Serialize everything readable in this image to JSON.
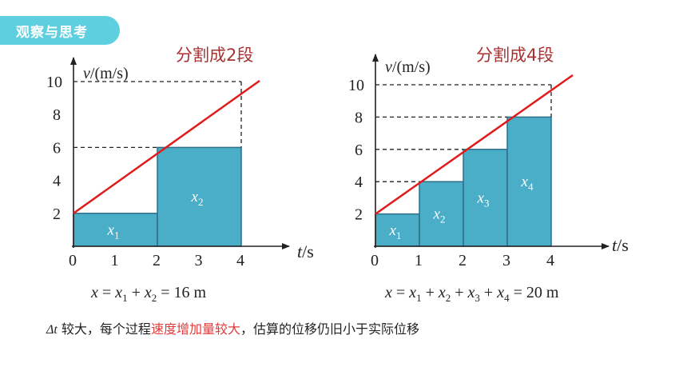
{
  "tag": {
    "label": "观察与思考"
  },
  "left_chart": {
    "title": "分割成2段",
    "y_label_var": "v",
    "y_label_unit": "/(m/s)",
    "x_label_var": "t",
    "x_label_unit": "/s",
    "x_ticks": [
      "0",
      "1",
      "2",
      "3",
      "4"
    ],
    "y_ticks": [
      "2",
      "4",
      "6",
      "8",
      "10"
    ],
    "bars": [
      {
        "x0": 0,
        "x1": 2,
        "height": 2,
        "label_var": "x",
        "label_sub": "1"
      },
      {
        "x0": 2,
        "x1": 4,
        "height": 6,
        "label_var": "x",
        "label_sub": "2"
      }
    ],
    "formula": {
      "lhs": "x",
      "terms": [
        [
          "x",
          "1"
        ],
        [
          "x",
          "2"
        ]
      ],
      "result": "= 16 m"
    }
  },
  "right_chart": {
    "title": "分割成4段",
    "y_label_var": "v",
    "y_label_unit": "/(m/s)",
    "x_label_var": "t",
    "x_label_unit": "/s",
    "x_ticks": [
      "0",
      "1",
      "2",
      "3",
      "4"
    ],
    "y_ticks": [
      "2",
      "4",
      "6",
      "8",
      "10"
    ],
    "bars": [
      {
        "x0": 0,
        "x1": 1,
        "height": 2,
        "label_var": "x",
        "label_sub": "1"
      },
      {
        "x0": 1,
        "x1": 2,
        "height": 4,
        "label_var": "x",
        "label_sub": "2"
      },
      {
        "x0": 2,
        "x1": 3,
        "height": 6,
        "label_var": "x",
        "label_sub": "3"
      },
      {
        "x0": 3,
        "x1": 4,
        "height": 8,
        "label_var": "x",
        "label_sub": "4"
      }
    ],
    "formula": {
      "lhs": "x",
      "terms": [
        [
          "x",
          "1"
        ],
        [
          "x",
          "2"
        ],
        [
          "x",
          "3"
        ],
        [
          "x",
          "4"
        ]
      ],
      "result": "= 20 m"
    }
  },
  "chart_data": [
    {
      "type": "bar",
      "title": "分割成2段",
      "xlabel": "t/s",
      "ylabel": "v/(m/s)",
      "xlim": [
        0,
        4
      ],
      "ylim": [
        0,
        10
      ],
      "bars": [
        {
          "x_start": 0,
          "x_end": 2,
          "value": 2,
          "label": "x1"
        },
        {
          "x_start": 2,
          "x_end": 4,
          "value": 6,
          "label": "x2"
        }
      ],
      "line": {
        "x": [
          0,
          4
        ],
        "y": [
          2,
          10
        ]
      },
      "total": "x = x1 + x2 = 16 m"
    },
    {
      "type": "bar",
      "title": "分割成4段",
      "xlabel": "t/s",
      "ylabel": "v/(m/s)",
      "xlim": [
        0,
        4
      ],
      "ylim": [
        0,
        10
      ],
      "bars": [
        {
          "x_start": 0,
          "x_end": 1,
          "value": 2,
          "label": "x1"
        },
        {
          "x_start": 1,
          "x_end": 2,
          "value": 4,
          "label": "x2"
        },
        {
          "x_start": 2,
          "x_end": 3,
          "value": 6,
          "label": "x3"
        },
        {
          "x_start": 3,
          "x_end": 4,
          "value": 8,
          "label": "x4"
        }
      ],
      "line": {
        "x": [
          0,
          4
        ],
        "y": [
          2,
          10
        ]
      },
      "total": "x = x1 + x2 + x3 + x4 = 20 m"
    }
  ],
  "bottom": {
    "delta_t": "Δt",
    "part1": " 较大，每个过程",
    "highlight": "速度增加量较大",
    "part2": "，估算的位移仍旧小于实际位移"
  },
  "colors": {
    "bar_fill": "#4aaec9",
    "bar_stroke": "#2d6f86",
    "line": "#e01b1b",
    "title": "#a83232",
    "tag": "#5ecfdf",
    "highlight": "#e23a3a"
  }
}
